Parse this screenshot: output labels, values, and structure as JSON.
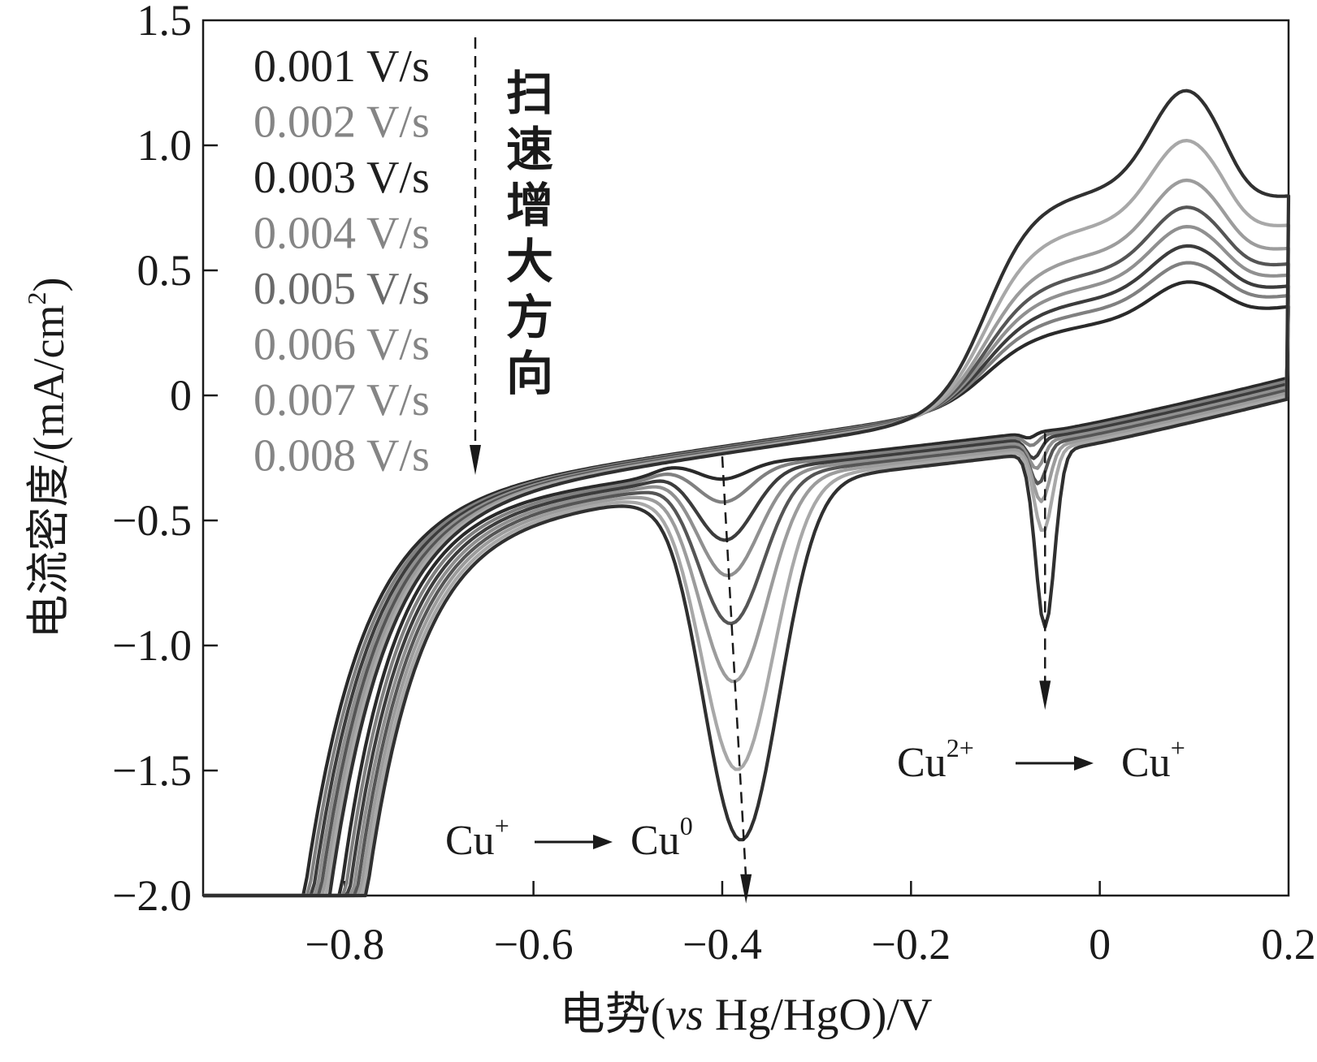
{
  "chart_data": {
    "type": "line",
    "xlabel_prefix": "电势(",
    "xlabel_italic": "vs",
    "xlabel_suffix": " Hg/HgO)/V",
    "ylabel_main": "电流密度/(mA/cm",
    "ylabel_sup": "2",
    "ylabel_close": ")",
    "xlim": [
      -0.95,
      0.2
    ],
    "ylim": [
      -2.0,
      1.5
    ],
    "xticks": [
      -0.8,
      -0.6,
      -0.4,
      -0.2,
      0,
      0.2
    ],
    "xtick_labels": [
      "−0.8",
      "−0.6",
      "−0.4",
      "−0.2",
      "0",
      "0.2"
    ],
    "yticks": [
      1.5,
      1.0,
      0.5,
      0,
      -0.5,
      -1.0,
      -1.5,
      -2.0
    ],
    "ytick_labels": [
      "1.5",
      "1.0",
      "0.5",
      "0",
      "−0.5",
      "−1.0",
      "−1.5",
      "−2.0"
    ],
    "grid": false,
    "legend_position": "top-left",
    "legend_color_black": "#1f1f1f",
    "legend_color_gray": "#858585",
    "arrow_text": [
      "扫",
      "速",
      "增",
      "大",
      "方",
      "向"
    ],
    "annotations": {
      "cu_plus_to_cu0": {
        "from": "Cu",
        "from_sup": "+",
        "to": "Cu",
        "to_sup": "0"
      },
      "cu2plus_to_cuplus": {
        "from": "Cu",
        "from_sup": "2+",
        "to": "Cu",
        "to_sup": "+"
      }
    },
    "series": [
      {
        "name": "0.001 V/s",
        "color": "#2a2a2a",
        "rate": 1,
        "peak1": -0.4,
        "depth1": 0.07,
        "peak2": -0.075,
        "depth2": 0.02,
        "anodic": 0.38
      },
      {
        "name": "0.002 V/s",
        "color": "#808080",
        "rate": 2,
        "peak1": -0.399,
        "depth1": 0.15,
        "peak2": -0.072,
        "depth2": 0.04,
        "anodic": 0.46
      },
      {
        "name": "0.003 V/s",
        "color": "#3c3c3c",
        "rate": 3,
        "peak1": -0.397,
        "depth1": 0.29,
        "peak2": -0.07,
        "depth2": 0.08,
        "anodic": 0.53
      },
      {
        "name": "0.004 V/s",
        "color": "#909090",
        "rate": 4,
        "peak1": -0.394,
        "depth1": 0.42,
        "peak2": -0.067,
        "depth2": 0.11,
        "anodic": 0.61
      },
      {
        "name": "0.005 V/s",
        "color": "#555555",
        "rate": 5,
        "peak1": -0.391,
        "depth1": 0.6,
        "peak2": -0.065,
        "depth2": 0.16,
        "anodic": 0.69
      },
      {
        "name": "0.006 V/s",
        "color": "#9c9c9c",
        "rate": 6,
        "peak1": -0.388,
        "depth1": 0.82,
        "peak2": -0.062,
        "depth2": 0.22,
        "anodic": 0.8
      },
      {
        "name": "0.007 V/s",
        "color": "#a8a8a8",
        "rate": 7,
        "peak1": -0.384,
        "depth1": 1.16,
        "peak2": -0.06,
        "depth2": 0.33,
        "anodic": 0.96
      },
      {
        "name": "0.008 V/s",
        "color": "#303030",
        "rate": 8,
        "peak1": -0.38,
        "depth1": 1.43,
        "peak2": -0.058,
        "depth2": 0.7,
        "anodic": 1.16
      }
    ]
  }
}
